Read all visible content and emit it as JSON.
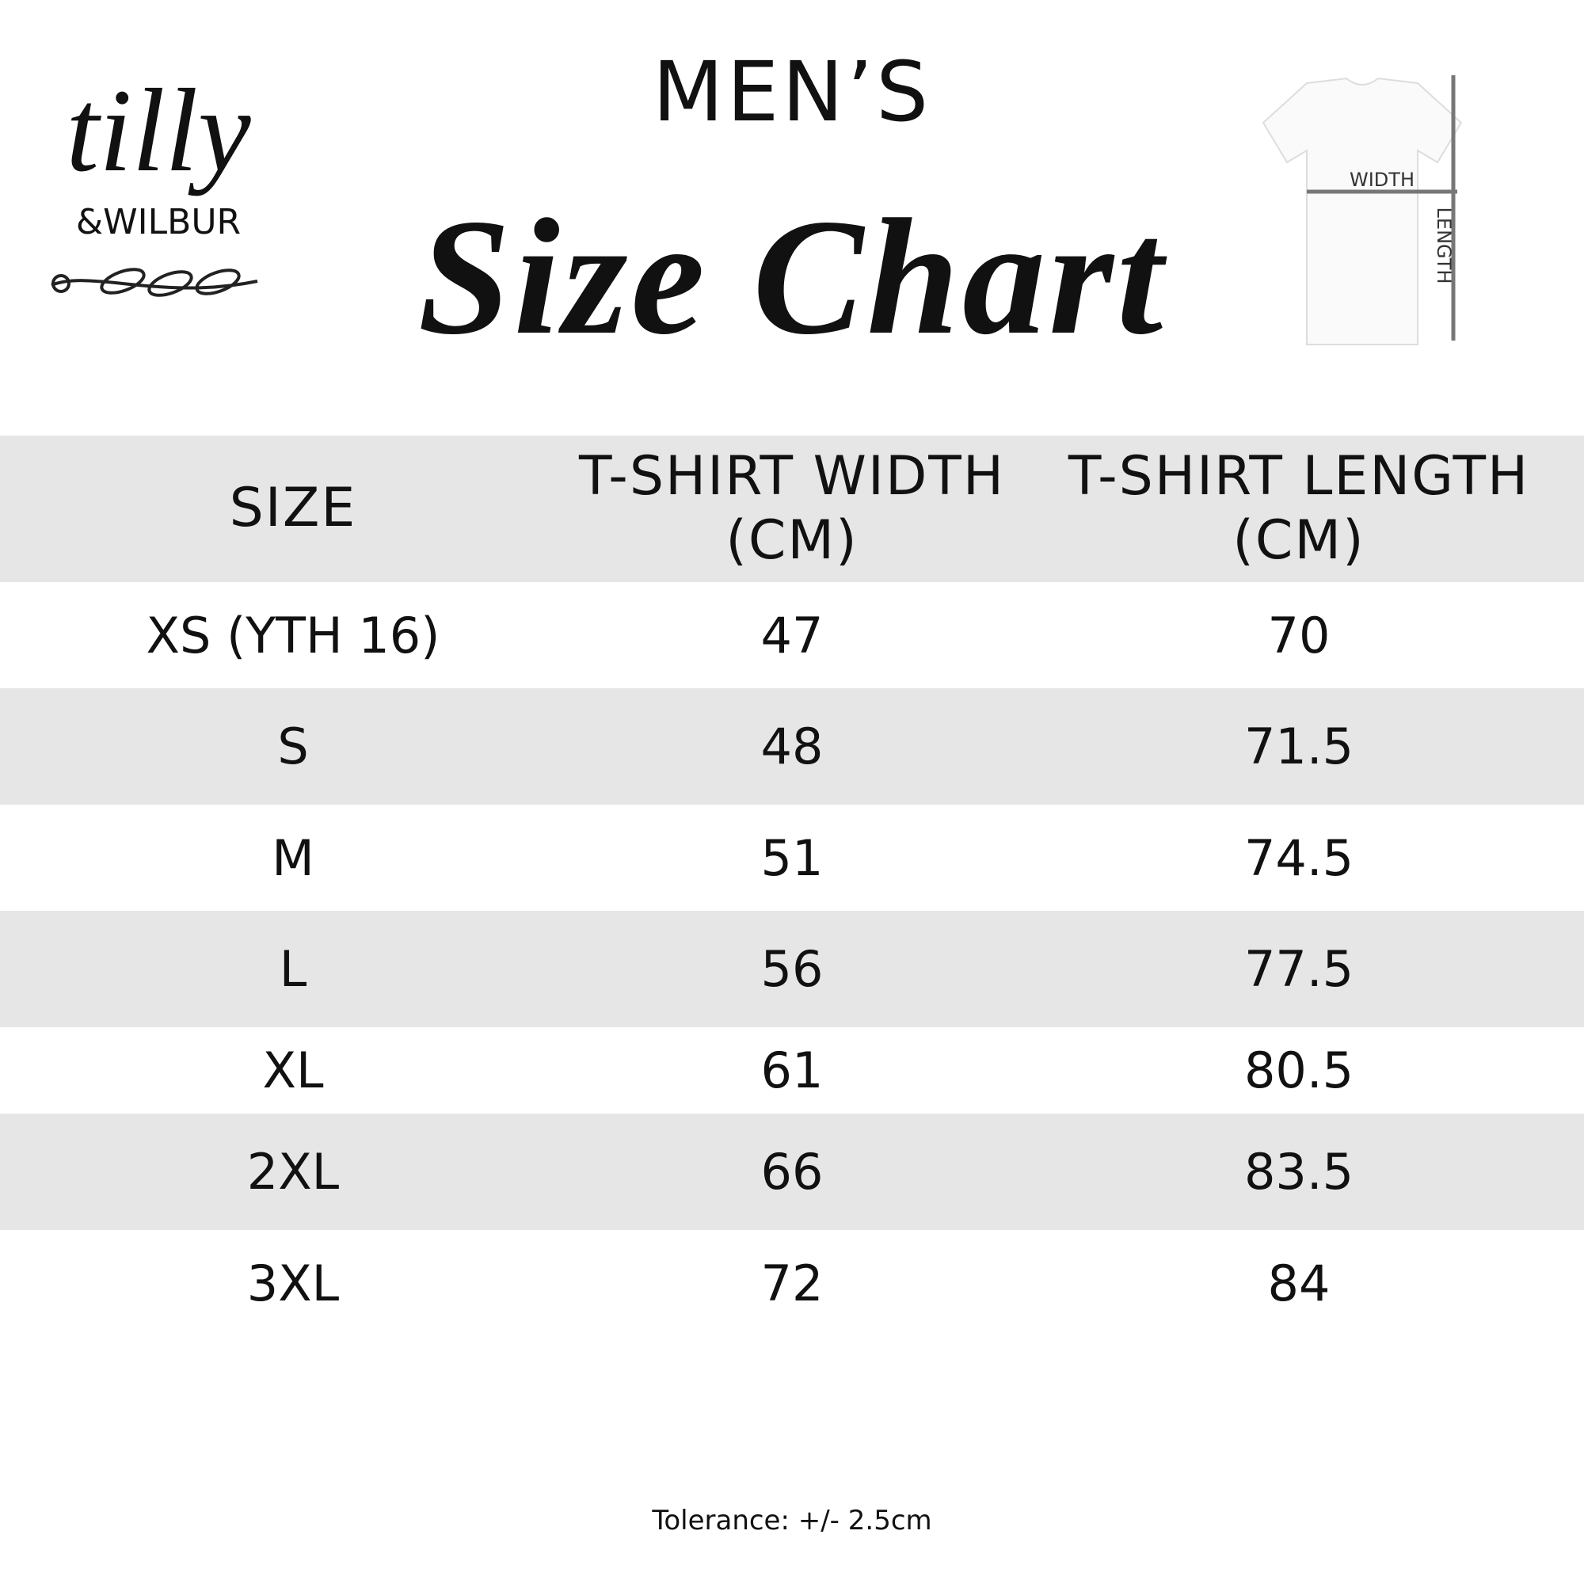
{
  "logo": {
    "name": "tilly",
    "subname": "&WILBUR"
  },
  "heading": {
    "eyebrow": "MEN’S",
    "title": "Size Chart"
  },
  "diagram": {
    "width_label": "WIDTH",
    "length_label": "LENGTH"
  },
  "table": {
    "header": [
      "SIZE",
      "T-SHIRT WIDTH (CM)",
      "T-SHIRT LENGTH (CM)"
    ],
    "rows": [
      [
        "XS (YTH 16)",
        "47",
        "70"
      ],
      [
        "S",
        "48",
        "71.5"
      ],
      [
        "M",
        "51",
        "74.5"
      ],
      [
        "L",
        "56",
        "77.5"
      ],
      [
        "XL",
        "61",
        "80.5"
      ],
      [
        "2XL",
        "66",
        "83.5"
      ],
      [
        "3XL",
        "72",
        "84"
      ]
    ]
  },
  "footer": {
    "note": "Tolerance: +/- 2.5cm"
  }
}
